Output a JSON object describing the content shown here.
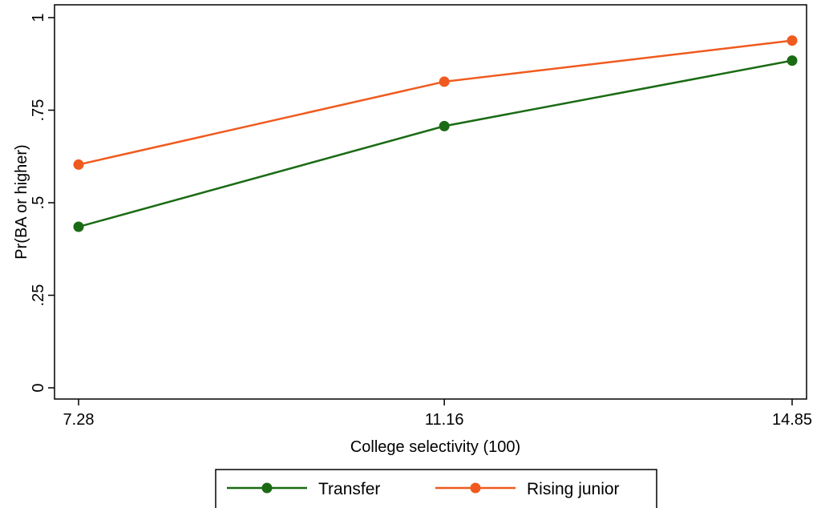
{
  "chart_data": {
    "type": "line",
    "title": "",
    "xlabel": "College selectivity (100)",
    "ylabel": "Pr(BA or higher)",
    "x": [
      7.28,
      11.16,
      14.85
    ],
    "x_tick_labels": [
      "7.28",
      "11.16",
      "14.85"
    ],
    "xlim": [
      7.28,
      14.85
    ],
    "y_ticks": [
      0,
      0.25,
      0.5,
      0.75,
      1
    ],
    "y_tick_labels": [
      "0",
      ".25",
      ".5",
      ".75",
      "1"
    ],
    "ylim": [
      0,
      1
    ],
    "grid": false,
    "legend_position": "bottom",
    "series": [
      {
        "name": "Transfer",
        "color": "#1a6b14",
        "values": [
          0.435,
          0.707,
          0.884
        ]
      },
      {
        "name": "Rising junior",
        "color": "#f05a1e",
        "values": [
          0.603,
          0.827,
          0.938
        ]
      }
    ]
  }
}
